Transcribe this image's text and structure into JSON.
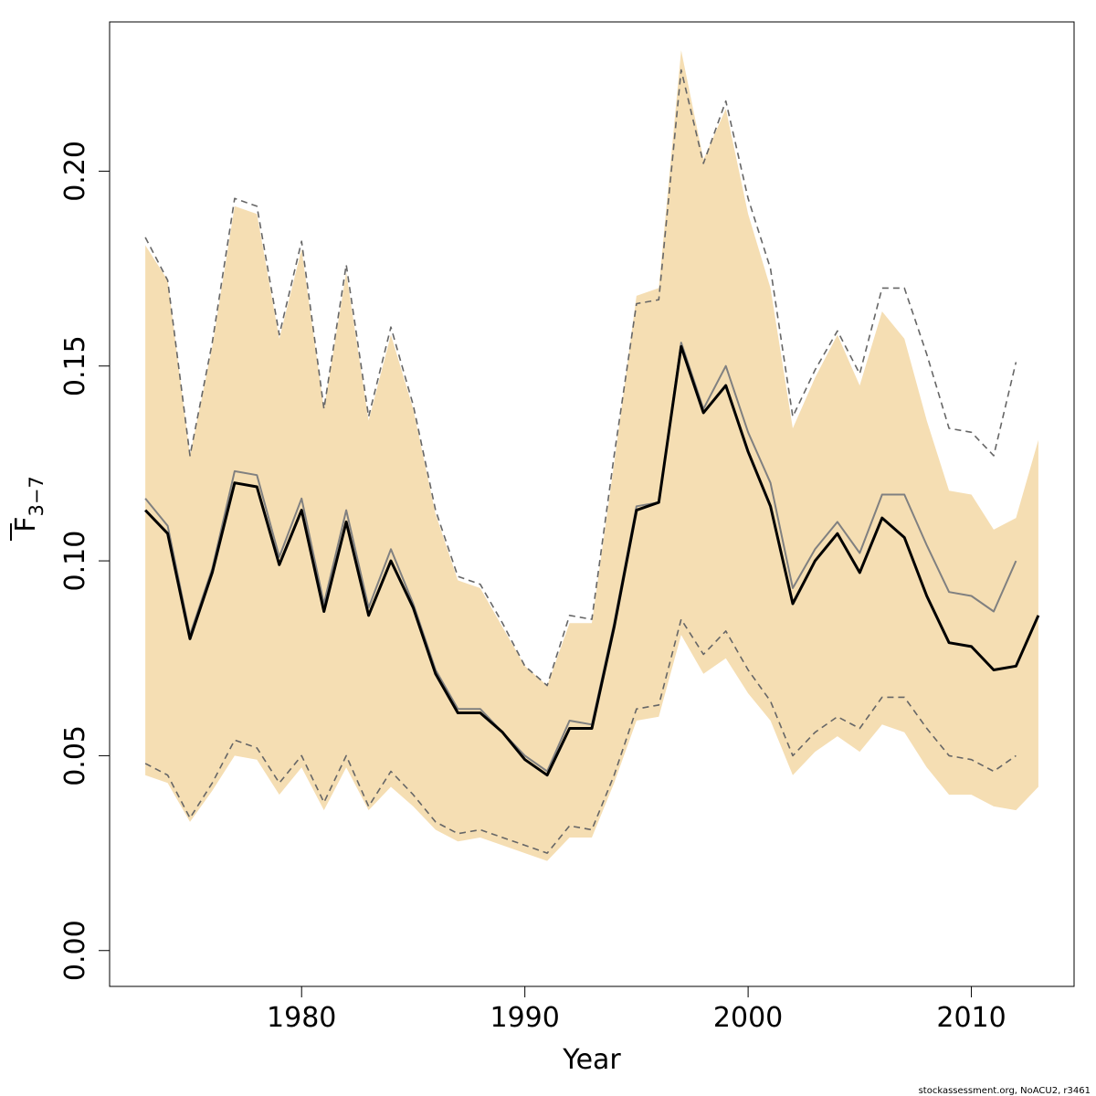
{
  "chart_data": {
    "type": "line",
    "title": "",
    "xlabel": "Year",
    "ylabel": {
      "main": "F",
      "subscript": "3−7"
    },
    "xlim": [
      1971.4,
      2014.6
    ],
    "ylim": [
      -0.0092,
      0.2383
    ],
    "x_ticks": [
      1980,
      1990,
      2000,
      2010
    ],
    "y_ticks": [
      0.0,
      0.05,
      0.1,
      0.15,
      0.2
    ],
    "x_tick_labels": [
      "1980",
      "1990",
      "2000",
      "2010"
    ],
    "y_tick_labels": [
      "0.00",
      "0.05",
      "0.10",
      "0.15",
      "0.20"
    ],
    "grid": false,
    "legend": "none",
    "years": [
      1973,
      1974,
      1975,
      1976,
      1977,
      1978,
      1979,
      1980,
      1981,
      1982,
      1983,
      1984,
      1985,
      1986,
      1987,
      1988,
      1989,
      1990,
      1991,
      1992,
      1993,
      1994,
      1995,
      1996,
      1997,
      1998,
      1999,
      2000,
      2001,
      2002,
      2003,
      2004,
      2005,
      2006,
      2007,
      2008,
      2009,
      2010,
      2011,
      2012,
      2013
    ],
    "band": {
      "color": "#f5deb3",
      "upper": [
        0.181,
        0.172,
        0.127,
        0.155,
        0.191,
        0.189,
        0.157,
        0.18,
        0.139,
        0.174,
        0.136,
        0.158,
        0.139,
        0.112,
        0.095,
        0.093,
        0.083,
        0.073,
        0.068,
        0.084,
        0.084,
        0.125,
        0.168,
        0.17,
        0.231,
        0.203,
        0.216,
        0.189,
        0.17,
        0.134,
        0.147,
        0.158,
        0.145,
        0.164,
        0.157,
        0.136,
        0.118,
        0.117,
        0.108,
        0.111,
        0.131
      ],
      "lower": [
        0.045,
        0.043,
        0.033,
        0.041,
        0.05,
        0.049,
        0.04,
        0.047,
        0.036,
        0.047,
        0.036,
        0.042,
        0.037,
        0.031,
        0.028,
        0.029,
        0.027,
        0.025,
        0.023,
        0.029,
        0.029,
        0.043,
        0.059,
        0.06,
        0.081,
        0.071,
        0.075,
        0.066,
        0.059,
        0.045,
        0.051,
        0.055,
        0.051,
        0.058,
        0.056,
        0.047,
        0.04,
        0.04,
        0.037,
        0.036,
        0.042
      ]
    },
    "series": [
      {
        "years_end": 2013,
        "color": "#000000",
        "width": 3,
        "dash": "",
        "values": [
          0.113,
          0.107,
          0.08,
          0.097,
          0.12,
          0.119,
          0.099,
          0.113,
          0.087,
          0.11,
          0.086,
          0.1,
          0.088,
          0.071,
          0.061,
          0.061,
          0.056,
          0.049,
          0.045,
          0.057,
          0.057,
          0.083,
          0.113,
          0.115,
          0.155,
          0.138,
          0.145,
          0.128,
          0.114,
          0.089,
          0.1,
          0.107,
          0.097,
          0.111,
          0.106,
          0.091,
          0.079,
          0.078,
          0.072,
          0.073,
          0.086
        ]
      },
      {
        "years_end": 2012,
        "color": "#808080",
        "width": 2,
        "dash": "",
        "values": [
          0.116,
          0.109,
          0.081,
          0.098,
          0.123,
          0.122,
          0.101,
          0.116,
          0.089,
          0.113,
          0.088,
          0.103,
          0.089,
          0.072,
          0.062,
          0.062,
          0.056,
          0.05,
          0.046,
          0.059,
          0.058,
          0.084,
          0.114,
          0.115,
          0.156,
          0.139,
          0.15,
          0.133,
          0.12,
          0.093,
          0.103,
          0.11,
          0.102,
          0.117,
          0.117,
          0.104,
          0.092,
          0.091,
          0.087,
          0.1
        ]
      },
      {
        "years_end": 2012,
        "color": "#666666",
        "width": 1.6,
        "dash": "7,5",
        "values": [
          0.183,
          0.172,
          0.127,
          0.156,
          0.193,
          0.191,
          0.158,
          0.182,
          0.139,
          0.176,
          0.137,
          0.16,
          0.14,
          0.113,
          0.096,
          0.094,
          0.084,
          0.073,
          0.068,
          0.086,
          0.085,
          0.127,
          0.166,
          0.167,
          0.226,
          0.202,
          0.218,
          0.193,
          0.175,
          0.137,
          0.149,
          0.159,
          0.148,
          0.17,
          0.17,
          0.153,
          0.134,
          0.133,
          0.127,
          0.151
        ]
      },
      {
        "years_end": 2012,
        "color": "#666666",
        "width": 1.6,
        "dash": "7,5",
        "values": [
          0.048,
          0.045,
          0.034,
          0.043,
          0.054,
          0.052,
          0.043,
          0.05,
          0.038,
          0.05,
          0.037,
          0.046,
          0.04,
          0.033,
          0.03,
          0.031,
          0.029,
          0.027,
          0.025,
          0.032,
          0.031,
          0.045,
          0.062,
          0.063,
          0.085,
          0.076,
          0.082,
          0.072,
          0.064,
          0.05,
          0.056,
          0.06,
          0.057,
          0.065,
          0.065,
          0.057,
          0.05,
          0.049,
          0.046,
          0.05
        ]
      }
    ]
  },
  "credit_text": "stockassessment.org, NoACU2, r3461"
}
